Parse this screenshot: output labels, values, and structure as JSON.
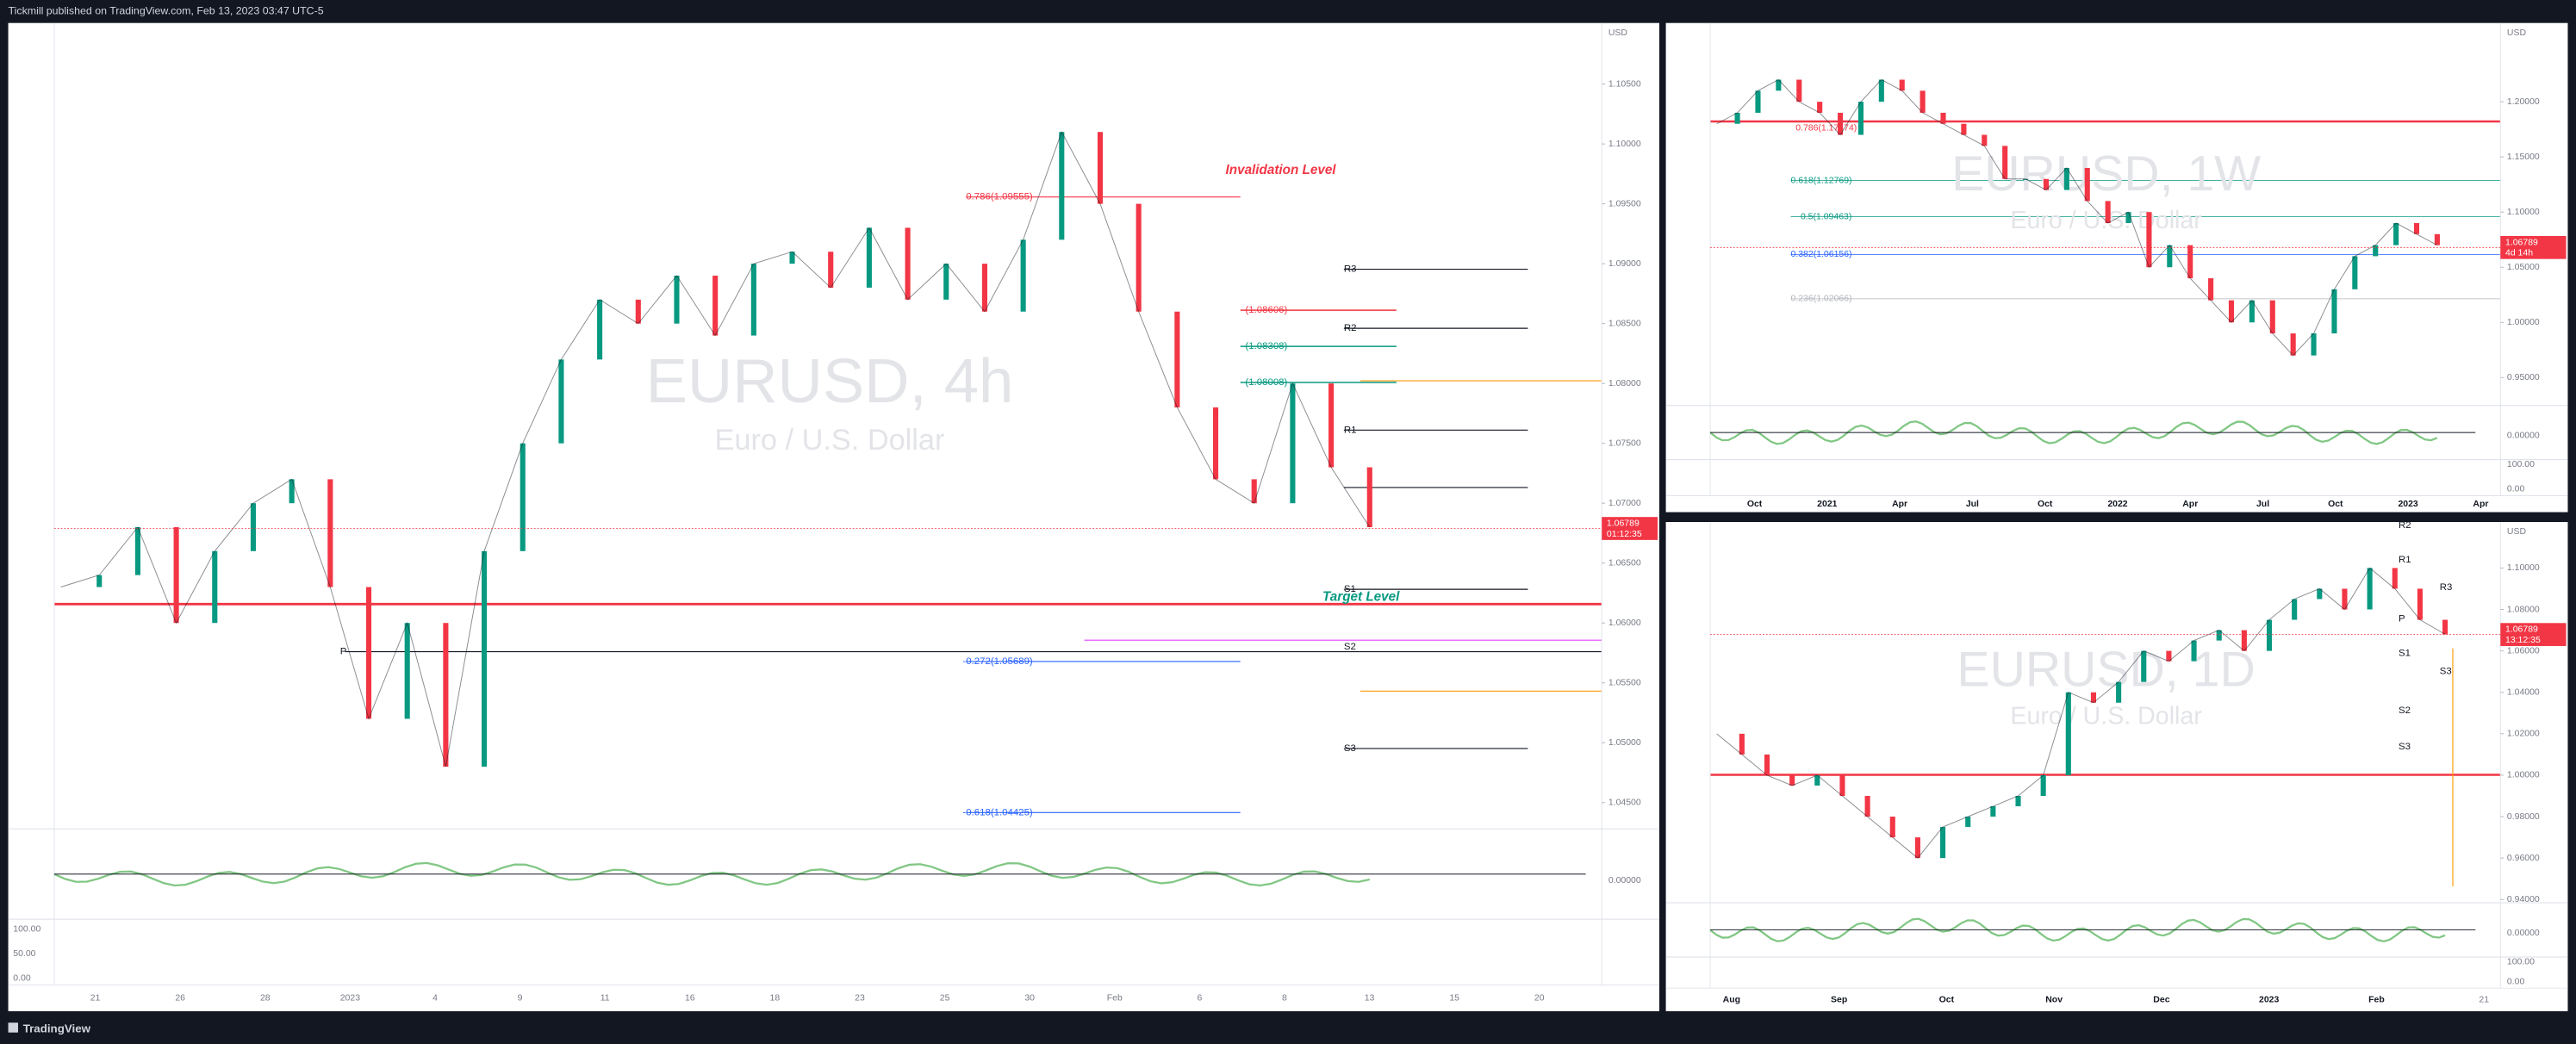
{
  "header": {
    "publisher": "Tickmill published on TradingView.com, Feb 13, 2023 03:47 UTC-5"
  },
  "footer": {
    "brand": "TradingView"
  },
  "panels": [
    {
      "symbol": "EURUSD, 4h",
      "description": "Euro / U.S. Dollar",
      "currency": "USD",
      "price_range": [
        1.0428,
        1.1101
      ],
      "price_ticks": [
        {
          "value": 1.105,
          "label": "1.10500"
        },
        {
          "value": 1.1,
          "label": "1.10000"
        },
        {
          "value": 1.095,
          "label": "1.09500"
        },
        {
          "value": 1.09,
          "label": "1.09000"
        },
        {
          "value": 1.085,
          "label": "1.08500"
        },
        {
          "value": 1.08,
          "label": "1.08000"
        },
        {
          "value": 1.075,
          "label": "1.07500"
        },
        {
          "value": 1.07,
          "label": "1.07000"
        },
        {
          "value": 1.065,
          "label": "1.06500"
        },
        {
          "value": 1.06,
          "label": "1.06000"
        },
        {
          "value": 1.055,
          "label": "1.05500"
        },
        {
          "value": 1.05,
          "label": "1.05000"
        },
        {
          "value": 1.045,
          "label": "1.04500"
        }
      ],
      "last_price": {
        "value": 1.06789,
        "label": "1.06789"
      },
      "countdown": "01:12:35",
      "time_labels": [
        "21",
        "26",
        "28",
        "2023",
        "4",
        "9",
        "11",
        "16",
        "18",
        "23",
        "25",
        "30",
        "Feb",
        "6",
        "8",
        "13",
        "15",
        "20"
      ],
      "oscillator_labels": [
        "0.00000",
        "100.00",
        "50.00",
        "0.00"
      ],
      "annotations": [
        "Invalidation Level",
        "Target Level",
        "0.786(1.09555)",
        "-0.272(1.05689)",
        "-0.618(1.04425)",
        "(1.08606)",
        "(1.08308)",
        "(1.08008)",
        "R3",
        "R2",
        "R1",
        "P",
        "S1",
        "S2",
        "S3"
      ],
      "closes": [
        1.063,
        1.064,
        1.068,
        1.06,
        1.066,
        1.07,
        1.072,
        1.063,
        1.052,
        1.06,
        1.048,
        1.066,
        1.075,
        1.082,
        1.087,
        1.085,
        1.089,
        1.084,
        1.09,
        1.091,
        1.088,
        1.093,
        1.087,
        1.09,
        1.086,
        1.092,
        1.101,
        1.095,
        1.086,
        1.078,
        1.072,
        1.07,
        1.08,
        1.073,
        1.068
      ]
    },
    {
      "symbol": "EURUSD, 1W",
      "description": "Euro / U.S. Dollar",
      "currency": "USD",
      "price_range": [
        0.9247,
        1.2714
      ],
      "price_ticks": [
        {
          "value": 1.2,
          "label": "1.20000"
        },
        {
          "value": 1.15,
          "label": "1.15000"
        },
        {
          "value": 1.1,
          "label": "1.10000"
        },
        {
          "value": 1.05,
          "label": "1.05000"
        },
        {
          "value": 1,
          "label": "1.00000"
        },
        {
          "value": 0.95,
          "label": "0.95000"
        }
      ],
      "last_price": {
        "value": 1.06789,
        "label": "1.06789"
      },
      "countdown": "4d 14h",
      "time_labels": [
        "Oct",
        "2021",
        "Apr",
        "Jul",
        "Oct",
        "2022",
        "Apr",
        "Jul",
        "Oct",
        "2023",
        "Apr"
      ],
      "oscillator_labels": [
        "0.00000",
        "100.00",
        "0.00"
      ],
      "annotations": [
        "0.786(1.17474)",
        "0.618(1.12769)",
        "0.5(1.09463)",
        "0.382(1.06156)",
        "0.236(1.02066)"
      ],
      "closes": [
        1.18,
        1.19,
        1.21,
        1.22,
        1.2,
        1.19,
        1.17,
        1.2,
        1.22,
        1.21,
        1.19,
        1.18,
        1.17,
        1.16,
        1.13,
        1.13,
        1.12,
        1.14,
        1.11,
        1.09,
        1.1,
        1.05,
        1.07,
        1.04,
        1.02,
        1.0,
        1.02,
        0.99,
        0.97,
        0.99,
        1.03,
        1.06,
        1.07,
        1.09,
        1.08,
        1.07
      ]
    },
    {
      "symbol": "EURUSD, 1D",
      "description": "Euro / U.S. Dollar",
      "currency": "USD",
      "price_range": [
        0.9384,
        1.1222
      ],
      "price_ticks": [
        {
          "value": 1.1,
          "label": "1.10000"
        },
        {
          "value": 1.08,
          "label": "1.08000"
        },
        {
          "value": 1.06,
          "label": "1.06000"
        },
        {
          "value": 1.04,
          "label": "1.04000"
        },
        {
          "value": 1.02,
          "label": "1.02000"
        },
        {
          "value": 1,
          "label": "1.00000"
        },
        {
          "value": 0.98,
          "label": "0.98000"
        },
        {
          "value": 0.96,
          "label": "0.96000"
        },
        {
          "value": 0.94,
          "label": "0.94000"
        }
      ],
      "last_price": {
        "value": 1.06789,
        "label": "1.06789"
      },
      "countdown": "13:12:35",
      "time_labels": [
        "Aug",
        "Sep",
        "Oct",
        "Nov",
        "Dec",
        "2023",
        "Feb",
        "21"
      ],
      "oscillator_labels": [
        "0.00000",
        "100.00",
        "0.00"
      ],
      "annotations": [
        "R2",
        "R1",
        "R3",
        "P",
        "S1",
        "S3",
        "S2",
        "S3"
      ],
      "closes": [
        1.02,
        1.01,
        1.0,
        0.995,
        1.0,
        0.99,
        0.98,
        0.97,
        0.96,
        0.975,
        0.98,
        0.985,
        0.99,
        1.0,
        1.04,
        1.035,
        1.045,
        1.06,
        1.055,
        1.065,
        1.07,
        1.06,
        1.075,
        1.085,
        1.09,
        1.08,
        1.1,
        1.09,
        1.075,
        1.068
      ]
    }
  ]
}
